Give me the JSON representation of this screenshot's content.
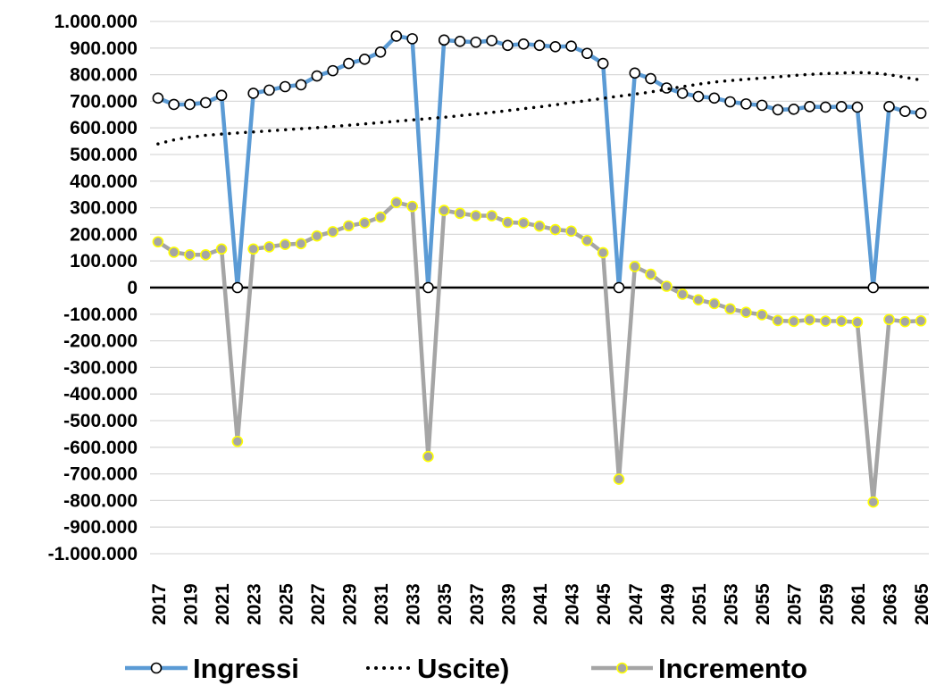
{
  "chart_data": {
    "type": "line",
    "x": [
      2017,
      2018,
      2019,
      2020,
      2021,
      2022,
      2023,
      2024,
      2025,
      2026,
      2027,
      2028,
      2029,
      2030,
      2031,
      2032,
      2033,
      2034,
      2035,
      2036,
      2037,
      2038,
      2039,
      2040,
      2041,
      2042,
      2043,
      2044,
      2045,
      2046,
      2047,
      2048,
      2049,
      2050,
      2051,
      2052,
      2053,
      2054,
      2055,
      2056,
      2057,
      2058,
      2059,
      2060,
      2061,
      2062,
      2063,
      2064,
      2065
    ],
    "x_tick_labels": [
      "2017",
      "2019",
      "2021",
      "2023",
      "2025",
      "2027",
      "2029",
      "2031",
      "2033",
      "2035",
      "2037",
      "2039",
      "2041",
      "2043",
      "2045",
      "2047",
      "2049",
      "2051",
      "2053",
      "2055",
      "2057",
      "2059",
      "2061",
      "2063",
      "2065"
    ],
    "ylim": [
      -1000000,
      1000000
    ],
    "y_tick_labels": [
      "1.000.000",
      "900.000",
      "800.000",
      "700.000",
      "600.000",
      "500.000",
      "400.000",
      "300.000",
      "200.000",
      "100.000",
      "0",
      "-100.000",
      "-200.000",
      "-300.000",
      "-400.000",
      "-500.000",
      "-600.000",
      "-700.000",
      "-800.000",
      "-900.000",
      "-1.000.000"
    ],
    "grid": true,
    "legend_position": "bottom",
    "series": [
      {
        "name": "Ingressi",
        "color": "#5b9bd5",
        "style": "solid-circle-markers",
        "values": [
          712000,
          688000,
          688000,
          695000,
          722000,
          0,
          730000,
          742000,
          755000,
          762000,
          795000,
          815000,
          842000,
          858000,
          885000,
          945000,
          935000,
          0,
          930000,
          925000,
          922000,
          928000,
          910000,
          915000,
          910000,
          905000,
          907000,
          880000,
          842000,
          0,
          806000,
          785000,
          750000,
          730000,
          718000,
          712000,
          698000,
          690000,
          685000,
          668000,
          670000,
          680000,
          678000,
          680000,
          678000,
          0,
          680000,
          662000,
          655000
        ]
      },
      {
        "name": "Uscite)",
        "color": "#000000",
        "style": "dotted",
        "values": [
          540000,
          555000,
          565000,
          572000,
          577000,
          581000,
          585000,
          589000,
          593000,
          597000,
          601000,
          605000,
          610000,
          615000,
          620000,
          625000,
          630000,
          635000,
          640000,
          646000,
          652000,
          658000,
          665000,
          672000,
          679000,
          687000,
          695000,
          703000,
          711000,
          719000,
          727000,
          735000,
          745000,
          755000,
          764000,
          772000,
          778000,
          783000,
          787000,
          792000,
          797000,
          801000,
          804000,
          806000,
          808000,
          806000,
          800000,
          790000,
          780000
        ]
      },
      {
        "name": "Incremento",
        "color": "#a5a5a5",
        "marker_color": "#ffff00",
        "style": "solid-circle-markers",
        "values": [
          172000,
          133000,
          123000,
          123000,
          145000,
          -578000,
          145000,
          153000,
          162000,
          165000,
          194000,
          210000,
          232000,
          243000,
          265000,
          320000,
          305000,
          -635000,
          290000,
          279000,
          270000,
          270000,
          245000,
          243000,
          231000,
          218000,
          212000,
          177000,
          131000,
          -720000,
          79000,
          50000,
          5000,
          -25000,
          -46000,
          -60000,
          -80000,
          -93000,
          -102000,
          -124000,
          -127000,
          -121000,
          -126000,
          -126000,
          -130000,
          -806000,
          -120000,
          -128000,
          -125000
        ]
      }
    ]
  }
}
